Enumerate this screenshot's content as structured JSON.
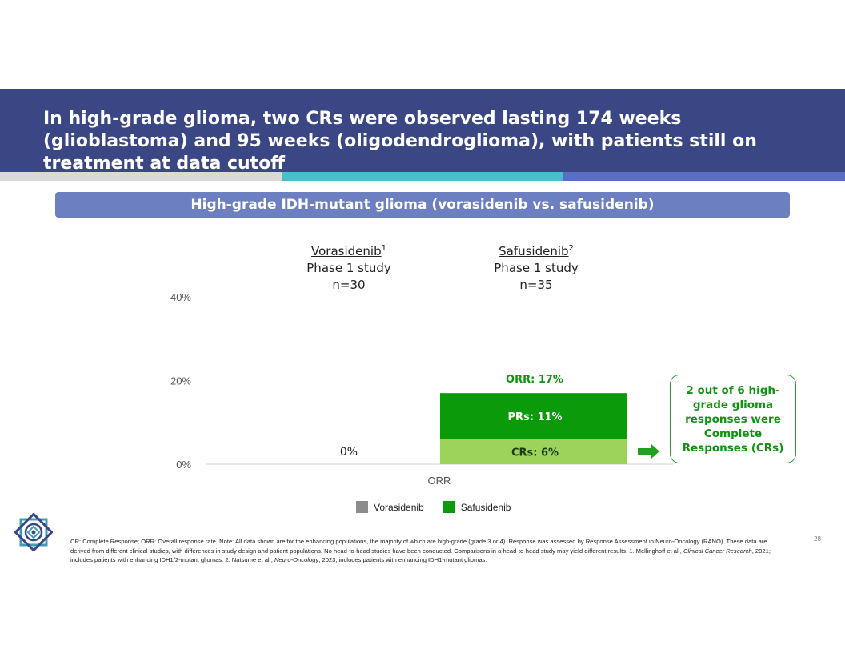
{
  "header": {
    "title": "In high-grade glioma, two CRs were observed lasting 174 weeks (glioblastoma) and 95 weeks (oligodendroglioma), with patients still on treatment at data cutoff",
    "section_title": "High-grade IDH-mutant glioma (vorasidenib vs. safusidenib)"
  },
  "columns": [
    {
      "name": "Vorasidenib",
      "sup": "1",
      "study": "Phase 1 study",
      "n": "n=30"
    },
    {
      "name": "Safusidenib",
      "sup": "2",
      "study": "Phase 1 study",
      "n": "n=35"
    }
  ],
  "chart_data": {
    "type": "bar",
    "categories": [
      "ORR"
    ],
    "ylim": [
      0,
      40
    ],
    "y_ticks": [
      "0%",
      "20%",
      "40%"
    ],
    "y_tick_values": [
      0,
      20,
      40
    ],
    "grid": false,
    "legend_placement": "bottom",
    "series": [
      {
        "name": "Vorasidenib",
        "color": "#8c8c8c",
        "values": [
          0
        ],
        "label": "0%"
      },
      {
        "name": "Safusidenib",
        "color": "#0a9a0a",
        "values": [
          17
        ],
        "label": "ORR: 17%",
        "stack": [
          {
            "label": "CRs: 6%",
            "value": 6,
            "color": "#9dd35a"
          },
          {
            "label": "PRs: 11%",
            "value": 11,
            "color": "#0a9a0a"
          }
        ]
      }
    ]
  },
  "callout": {
    "text": "2 out of 6 high-grade glioma responses were Complete Responses (CRs)"
  },
  "colors": {
    "title_bar": "#3b4784",
    "section_bar": "#6c7fc1",
    "accent_green": "#129312",
    "arrow_green": "#22a022"
  },
  "footer": {
    "footnote_1": "CR: Complete Response; ORR: Overall response rate. Note: All data shown are for the enhancing populations, the majority of which are high-grade (grade 3 or 4). Response was assessed by Response Assessment in Neuro-Oncology (RANO). These data are derived from different clinical studies, with differences in study design and patient populations. No head-to-head studies have been conducted. Comparisons in a head-to-head study may yield different results. 1. Mellinghoff et al., ",
    "journal_1": "Clinical Cancer Research",
    "footnote_2": ", 2021; includes patients with enhancing IDH1/2-mutant gliomas. 2. Natsume et al., ",
    "journal_2": "Neuro-Oncology",
    "footnote_3": ", 2023; includes patients with enhancing IDH1-mutant gliomas.",
    "page_number": "28",
    "logo_icon": "ornamental-star-logo-icon"
  }
}
